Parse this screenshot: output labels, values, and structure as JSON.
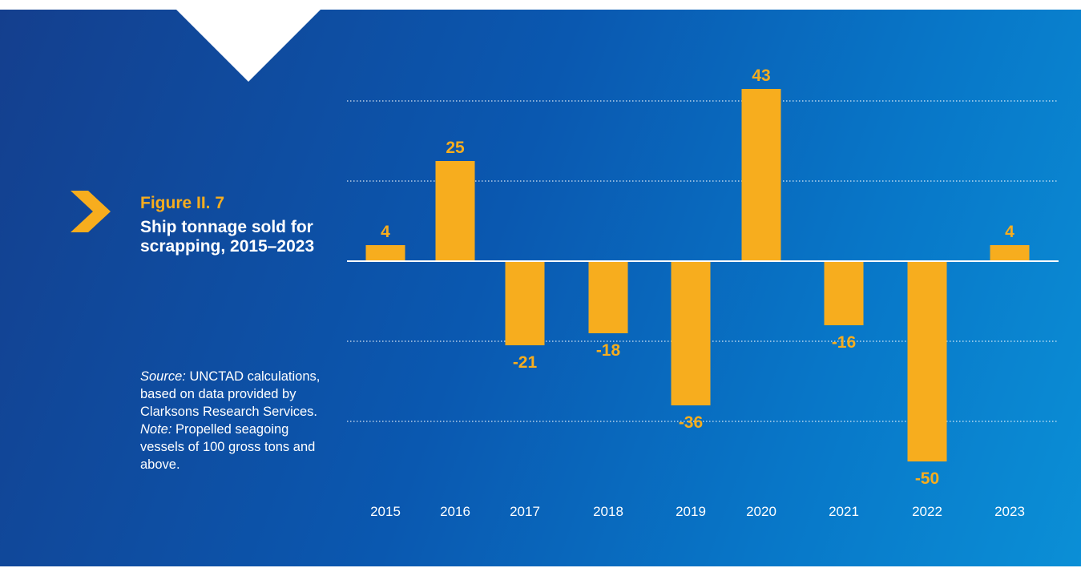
{
  "figure": {
    "label": "Figure II. 7",
    "title": "Ship tonnage sold for scrapping, 2015–2023",
    "source_prefix": "Source:",
    "source_text": "UNCTAD calculations, based on data provided by Clarksons Research Services.",
    "note_prefix": "Note:",
    "note_text": "Propelled seagoing vessels of 100 gross tons and above."
  },
  "colors": {
    "bar": "#f7ad1e",
    "accent": "#f7ad1e",
    "text": "#ffffff",
    "grid": "#ffffff"
  },
  "icons": {
    "figure_marker": "chevron-right-icon"
  },
  "chart_data": {
    "type": "bar",
    "categories": [
      "2015",
      "2016",
      "2017",
      "2018",
      "2019",
      "2020",
      "2021",
      "2022",
      "2023"
    ],
    "values": [
      4,
      25,
      -21,
      -18,
      -36,
      43,
      -16,
      -50,
      4
    ],
    "data_labels": [
      "4",
      "25",
      "-21",
      "-18",
      "-36",
      "43",
      "-16",
      "-50",
      "4"
    ],
    "title": "",
    "xlabel": "",
    "ylabel": "",
    "ylim": [
      -50,
      43
    ],
    "grid": true,
    "gridlines": [
      40,
      20,
      -20,
      -40
    ],
    "zero_line": true,
    "legend": "none"
  }
}
